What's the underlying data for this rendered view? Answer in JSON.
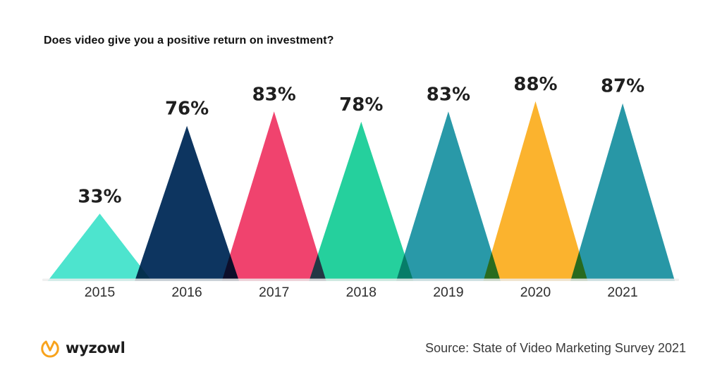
{
  "header": {
    "title": "Does video give you a positive return on investment?"
  },
  "chart_data": {
    "type": "bar",
    "shape": "triangle-peaks",
    "title": "Does video give you a positive return on investment?",
    "categories": [
      "2015",
      "2016",
      "2017",
      "2018",
      "2019",
      "2020",
      "2021"
    ],
    "values": [
      33,
      76,
      83,
      78,
      83,
      88,
      87
    ],
    "value_labels": [
      "33%",
      "76%",
      "83%",
      "78%",
      "83%",
      "88%",
      "87%"
    ],
    "colors": [
      "#4DE4CE",
      "#0D3560",
      "#F0436E",
      "#25D09D",
      "#2999A8",
      "#FBB32E",
      "#2897A6"
    ],
    "blend_mode": "multiply",
    "xlabel": "",
    "ylabel": "",
    "ylim": [
      0,
      100
    ],
    "grid": false,
    "legend": "none",
    "value_label_color": "#1f1f1f",
    "category_label_color": "#2e2e2e",
    "baseline_color": "#ededed"
  },
  "footer": {
    "logo_text": "wyzowl",
    "logo_color": "#F8A31D",
    "source": "Source: State of Video Marketing Survey 2021"
  }
}
